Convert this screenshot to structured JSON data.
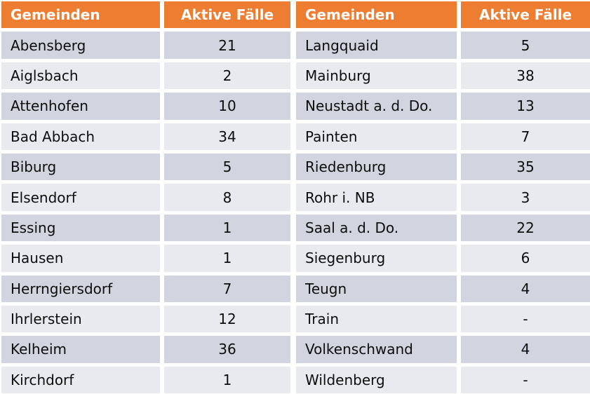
{
  "chart_data": {
    "type": "table",
    "description_visible_text_only": "Two side-by-side tables of municipalities with active case counts",
    "tables": [
      {
        "headers": [
          "Gemeinden",
          "Aktive Fälle"
        ],
        "rows": [
          [
            "Abensberg",
            "21"
          ],
          [
            "Aiglsbach",
            "2"
          ],
          [
            "Attenhofen",
            "10"
          ],
          [
            "Bad Abbach",
            "34"
          ],
          [
            "Biburg",
            "5"
          ],
          [
            "Elsendorf",
            "8"
          ],
          [
            "Essing",
            "1"
          ],
          [
            "Hausen",
            "1"
          ],
          [
            "Herrngiersdorf",
            "7"
          ],
          [
            "Ihrlerstein",
            "12"
          ],
          [
            "Kelheim",
            "36"
          ],
          [
            "Kirchdorf",
            "1"
          ]
        ]
      },
      {
        "headers": [
          "Gemeinden",
          "Aktive Fälle"
        ],
        "rows": [
          [
            "Langquaid",
            "5"
          ],
          [
            "Mainburg",
            "38"
          ],
          [
            "Neustadt a. d. Do.",
            "13"
          ],
          [
            "Painten",
            "7"
          ],
          [
            "Riedenburg",
            "35"
          ],
          [
            "Rohr i. NB",
            "3"
          ],
          [
            "Saal a. d. Do.",
            "22"
          ],
          [
            "Siegenburg",
            "6"
          ],
          [
            "Teugn",
            "4"
          ],
          [
            "Train",
            "-"
          ],
          [
            "Volkenschwand",
            "4"
          ],
          [
            "Wildenberg",
            "-"
          ]
        ]
      }
    ]
  },
  "colors": {
    "header_bg": "#ED7D31",
    "header_text": "#FFFFFF",
    "row_dark": "#D2D5DF",
    "row_light": "#E9EAF0",
    "cell_text": "#0D0D0D",
    "gap": "#FFFFFF"
  }
}
